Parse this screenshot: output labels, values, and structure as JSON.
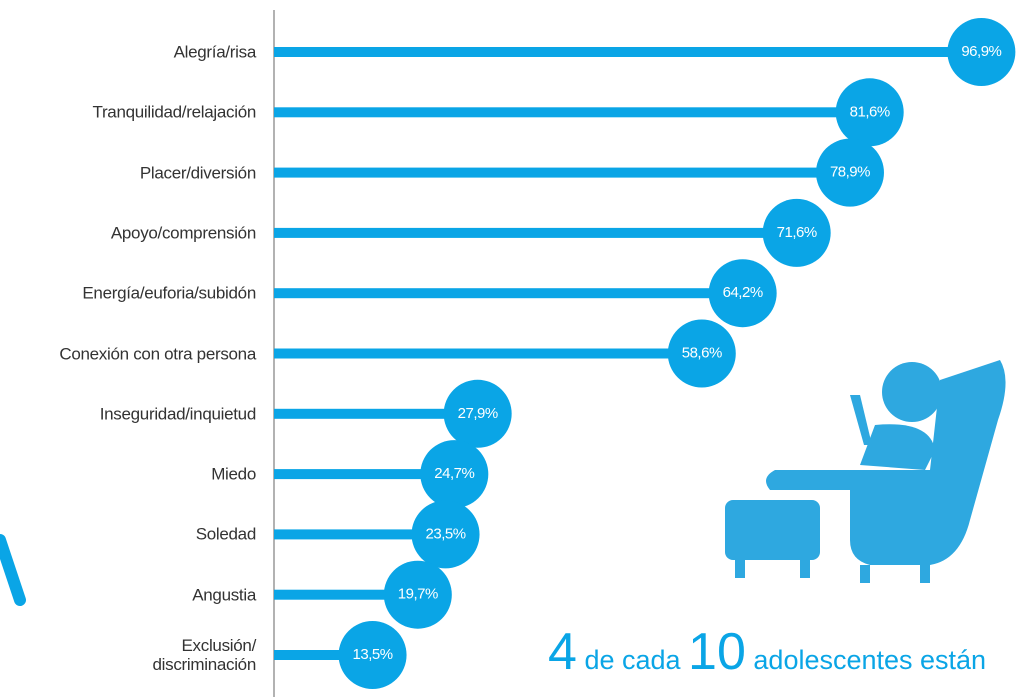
{
  "chart_data": {
    "type": "barh",
    "color": "#0aa5e6",
    "categories": [
      "Alegría/risa",
      "Tranquilidad/relajación",
      "Placer/diversión",
      "Apoyo/comprensión",
      "Energía/euforia/subidón",
      "Conexión con otra persona",
      "Inseguridad/inquietud",
      "Miedo",
      "Soledad",
      "Angustia",
      "Exclusión/\ndiscriminación"
    ],
    "values": [
      96.9,
      81.6,
      78.9,
      71.6,
      64.2,
      58.6,
      27.9,
      24.7,
      23.5,
      19.7,
      13.5
    ],
    "value_labels": [
      "96,9%",
      "81,6%",
      "78,9%",
      "71,6%",
      "64,2%",
      "58,6%",
      "27,9%",
      "24,7%",
      "23,5%",
      "19,7%",
      "13,5%"
    ],
    "annotation": [
      "4",
      "de cada",
      "10",
      "adolescentes están"
    ]
  }
}
